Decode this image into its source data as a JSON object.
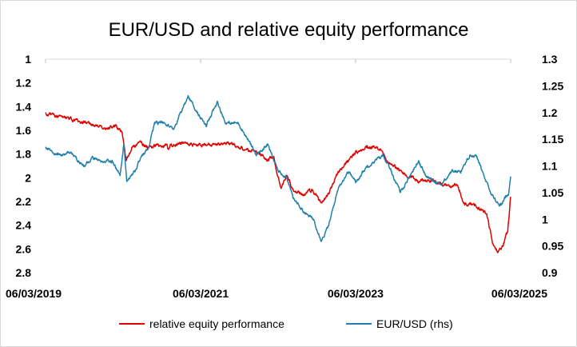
{
  "chart_data": {
    "type": "line",
    "title": "EUR/USD and relative equity performance",
    "x_tick_labels": [
      "06/03/2019",
      "06/03/2021",
      "06/03/2023",
      "06/03/2025"
    ],
    "x_range": [
      "2019-03-06",
      "2025-03-06"
    ],
    "y_left": {
      "range": [
        1,
        2.8
      ],
      "inverted": true,
      "tick_labels": [
        "1",
        "1.2",
        "1.4",
        "1.6",
        "1.8",
        "2",
        "2.2",
        "2.4",
        "2.6",
        "2.8"
      ]
    },
    "y_right": {
      "range": [
        0.9,
        1.3
      ],
      "tick_labels": [
        "1.3",
        "1.25",
        "1.2",
        "1.15",
        "1.1",
        "1.05",
        "1",
        "0.95",
        "0.9"
      ]
    },
    "grid": false,
    "legend_position": "bottom",
    "series": [
      {
        "name": "relative equity performance",
        "axis": "left",
        "color": "#e00000",
        "points": [
          [
            "2019-03-06",
            1.46
          ],
          [
            "2019-06-01",
            1.49
          ],
          [
            "2019-09-01",
            1.53
          ],
          [
            "2019-12-01",
            1.58
          ],
          [
            "2020-02-01",
            1.56
          ],
          [
            "2020-03-01",
            1.62
          ],
          [
            "2020-03-20",
            1.85
          ],
          [
            "2020-04-15",
            1.75
          ],
          [
            "2020-06-01",
            1.7
          ],
          [
            "2020-07-01",
            1.76
          ],
          [
            "2020-08-01",
            1.72
          ],
          [
            "2020-10-01",
            1.74
          ],
          [
            "2020-12-01",
            1.7
          ],
          [
            "2021-03-06",
            1.73
          ],
          [
            "2021-06-01",
            1.71
          ],
          [
            "2021-08-01",
            1.72
          ],
          [
            "2021-10-01",
            1.76
          ],
          [
            "2021-12-01",
            1.79
          ],
          [
            "2022-01-15",
            1.85
          ],
          [
            "2022-02-15",
            1.83
          ],
          [
            "2022-03-01",
            1.98
          ],
          [
            "2022-03-20",
            2.08
          ],
          [
            "2022-04-15",
            1.98
          ],
          [
            "2022-05-15",
            2.1
          ],
          [
            "2022-07-01",
            2.15
          ],
          [
            "2022-08-15",
            2.1
          ],
          [
            "2022-09-25",
            2.22
          ],
          [
            "2022-11-01",
            2.13
          ],
          [
            "2022-12-15",
            1.95
          ],
          [
            "2023-02-01",
            1.86
          ],
          [
            "2023-03-06",
            1.78
          ],
          [
            "2023-05-01",
            1.74
          ],
          [
            "2023-07-01",
            1.76
          ],
          [
            "2023-08-15",
            1.88
          ],
          [
            "2023-09-15",
            1.92
          ],
          [
            "2023-11-01",
            1.98
          ],
          [
            "2024-01-01",
            2.03
          ],
          [
            "2024-03-01",
            2.02
          ],
          [
            "2024-05-01",
            2.06
          ],
          [
            "2024-07-01",
            2.07
          ],
          [
            "2024-08-01",
            2.23
          ],
          [
            "2024-09-15",
            2.22
          ],
          [
            "2024-10-15",
            2.26
          ],
          [
            "2024-11-15",
            2.32
          ],
          [
            "2024-12-15",
            2.58
          ],
          [
            "2025-01-10",
            2.62
          ],
          [
            "2025-02-01",
            2.55
          ],
          [
            "2025-02-20",
            2.45
          ],
          [
            "2025-03-06",
            2.16
          ]
        ]
      },
      {
        "name": "EUR/USD (rhs)",
        "axis": "right",
        "color": "#1f7fa8",
        "points": [
          [
            "2019-03-06",
            1.134
          ],
          [
            "2019-05-01",
            1.12
          ],
          [
            "2019-07-01",
            1.125
          ],
          [
            "2019-09-01",
            1.1
          ],
          [
            "2019-10-15",
            1.115
          ],
          [
            "2019-12-01",
            1.105
          ],
          [
            "2020-01-15",
            1.11
          ],
          [
            "2020-02-20",
            1.08
          ],
          [
            "2020-03-09",
            1.14
          ],
          [
            "2020-03-23",
            1.07
          ],
          [
            "2020-05-01",
            1.09
          ],
          [
            "2020-06-01",
            1.12
          ],
          [
            "2020-07-01",
            1.13
          ],
          [
            "2020-08-01",
            1.18
          ],
          [
            "2020-09-15",
            1.18
          ],
          [
            "2020-11-01",
            1.17
          ],
          [
            "2021-01-06",
            1.23
          ],
          [
            "2021-03-06",
            1.19
          ],
          [
            "2021-04-01",
            1.175
          ],
          [
            "2021-05-25",
            1.22
          ],
          [
            "2021-07-01",
            1.18
          ],
          [
            "2021-09-01",
            1.18
          ],
          [
            "2021-11-25",
            1.12
          ],
          [
            "2022-01-15",
            1.14
          ],
          [
            "2022-03-07",
            1.09
          ],
          [
            "2022-04-15",
            1.08
          ],
          [
            "2022-05-15",
            1.04
          ],
          [
            "2022-07-15",
            1.01
          ],
          [
            "2022-08-20",
            1.0
          ],
          [
            "2022-09-27",
            0.96
          ],
          [
            "2022-11-01",
            0.99
          ],
          [
            "2022-12-15",
            1.06
          ],
          [
            "2023-02-01",
            1.09
          ],
          [
            "2023-03-06",
            1.07
          ],
          [
            "2023-05-01",
            1.1
          ],
          [
            "2023-07-15",
            1.12
          ],
          [
            "2023-09-01",
            1.08
          ],
          [
            "2023-10-03",
            1.05
          ],
          [
            "2023-12-28",
            1.11
          ],
          [
            "2024-02-01",
            1.08
          ],
          [
            "2024-04-15",
            1.065
          ],
          [
            "2024-06-01",
            1.09
          ],
          [
            "2024-07-15",
            1.09
          ],
          [
            "2024-08-25",
            1.12
          ],
          [
            "2024-09-30",
            1.115
          ],
          [
            "2024-11-01",
            1.08
          ],
          [
            "2024-12-01",
            1.05
          ],
          [
            "2025-01-13",
            1.025
          ],
          [
            "2025-02-01",
            1.035
          ],
          [
            "2025-02-25",
            1.05
          ],
          [
            "2025-03-06",
            1.08
          ]
        ]
      }
    ]
  }
}
